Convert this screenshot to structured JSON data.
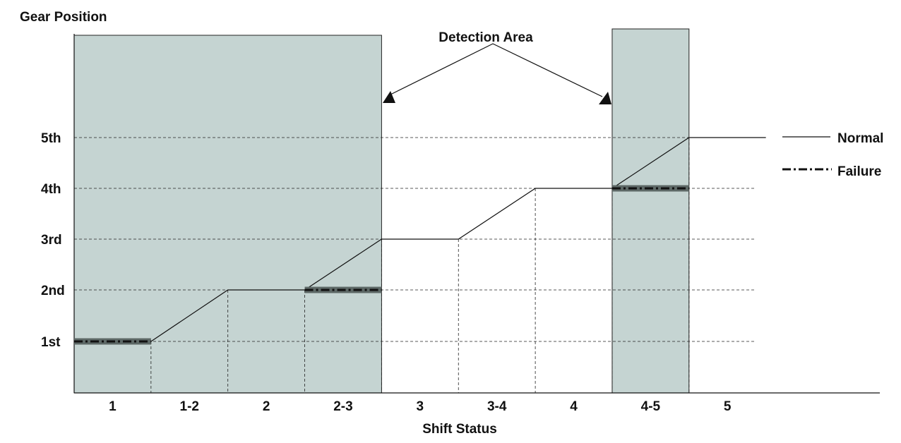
{
  "chart_data": {
    "type": "line",
    "ylabel": "Gear Position",
    "xlabel": "Shift Status",
    "annotation": "Detection Area",
    "categories": [
      "1",
      "1-2",
      "2",
      "2-3",
      "3",
      "3-4",
      "4",
      "4-5",
      "5"
    ],
    "y_ticks": [
      {
        "label": "1st",
        "value": 1
      },
      {
        "label": "2nd",
        "value": 2
      },
      {
        "label": "3rd",
        "value": 3
      },
      {
        "label": "4th",
        "value": 4
      },
      {
        "label": "5th",
        "value": 5
      }
    ],
    "series": [
      {
        "name": "Normal",
        "style": "solid",
        "points": [
          [
            1,
            1
          ],
          [
            2,
            2
          ],
          [
            3,
            2
          ],
          [
            4,
            3
          ],
          [
            5,
            3
          ],
          [
            6,
            4
          ],
          [
            7,
            4
          ],
          [
            8,
            5
          ],
          [
            9,
            5
          ]
        ]
      },
      {
        "name": "Failure",
        "style": "dash-dot",
        "segments": [
          {
            "category": "1",
            "value": 1
          },
          {
            "category": "2-3",
            "value": 2
          },
          {
            "category": "4-5",
            "value": 4
          }
        ]
      }
    ],
    "detection_areas": [
      {
        "from_category": "1",
        "to_category": "2-3"
      },
      {
        "from_category": "4-5",
        "to_category": "4-5"
      }
    ],
    "colors": {
      "detection_fill": "#c5d4d2",
      "line": "#111111",
      "failure_band": "#5d6866"
    },
    "grid": true
  }
}
